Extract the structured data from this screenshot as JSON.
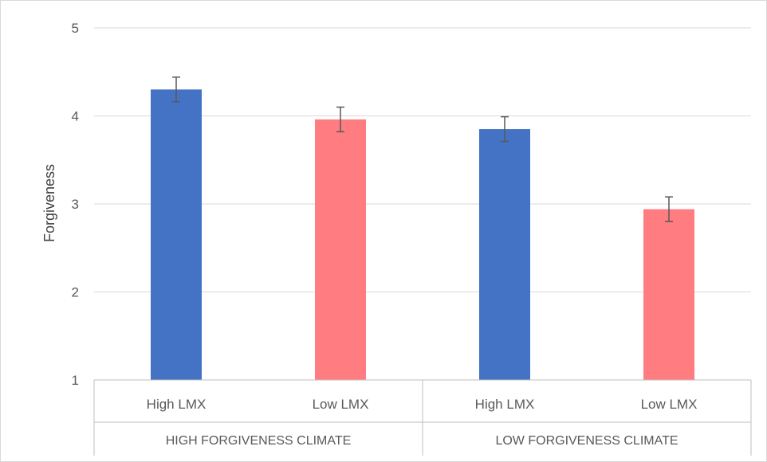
{
  "chart_data": {
    "type": "bar",
    "title": "",
    "ylabel": "Forgiveness",
    "xlabel": "",
    "ylim": [
      1,
      5
    ],
    "yticks": [
      1,
      2,
      3,
      4,
      5
    ],
    "grid": true,
    "groups": [
      {
        "label": "HIGH FORGIVENESS CLIMATE",
        "categories": [
          "High LMX",
          "Low LMX"
        ]
      },
      {
        "label": "LOW FORGIVENESS CLIMATE",
        "categories": [
          "High LMX",
          "Low LMX"
        ]
      }
    ],
    "categories": [
      "High LMX",
      "Low LMX",
      "High LMX",
      "Low LMX"
    ],
    "values": [
      4.3,
      3.96,
      3.85,
      2.94
    ],
    "error": [
      0.14,
      0.14,
      0.14,
      0.14
    ],
    "colors": [
      "#4472C4",
      "#FF7C80",
      "#4472C4",
      "#FF7C80"
    ],
    "error_color": "#595959",
    "grid_color": "#d9d9d9"
  }
}
